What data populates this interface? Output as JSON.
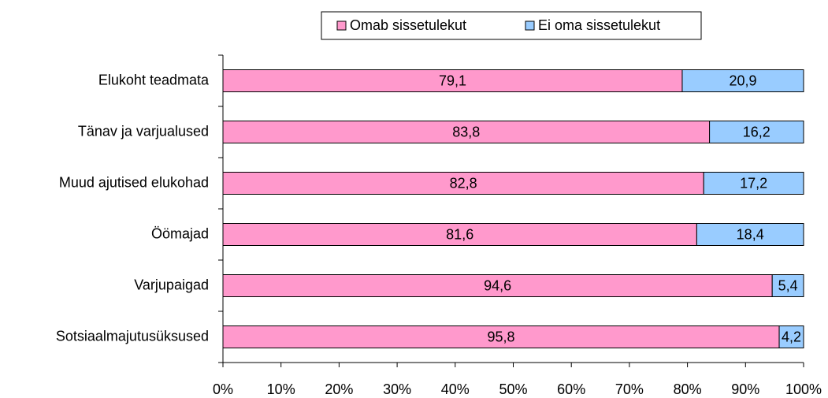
{
  "chart_data": {
    "type": "stacked-barh",
    "categories": [
      "Elukoht teadmata",
      "Tänav ja varjualused",
      "Muud ajutised elukohad",
      "Öömajad",
      "Varjupaigad",
      "Sotsiaalmajutusüksused"
    ],
    "series": [
      {
        "name": "Omab sissetulekut",
        "color": "#ff99cc",
        "values": [
          79.1,
          83.8,
          82.8,
          81.6,
          94.6,
          95.8
        ],
        "value_labels": [
          "79,1",
          "83,8",
          "82,8",
          "81,6",
          "94,6",
          "95,8"
        ]
      },
      {
        "name": "Ei oma sissetulekut",
        "color": "#99ccff",
        "values": [
          20.9,
          16.2,
          17.2,
          18.4,
          5.4,
          4.2
        ],
        "value_labels": [
          "20,9",
          "16,2",
          "17,2",
          "18,4",
          "5,4",
          "4,2"
        ]
      }
    ],
    "xlim": [
      0,
      100
    ],
    "xticks": [
      {
        "value": 0,
        "label": "0%"
      },
      {
        "value": 10,
        "label": "10%"
      },
      {
        "value": 20,
        "label": "20%"
      },
      {
        "value": 30,
        "label": "30%"
      },
      {
        "value": 40,
        "label": "40%"
      },
      {
        "value": 50,
        "label": "50%"
      },
      {
        "value": 60,
        "label": "60%"
      },
      {
        "value": 70,
        "label": "70%"
      },
      {
        "value": 80,
        "label": "80%"
      },
      {
        "value": 90,
        "label": "90%"
      },
      {
        "value": 100,
        "label": "100%"
      }
    ],
    "legend": "top"
  }
}
